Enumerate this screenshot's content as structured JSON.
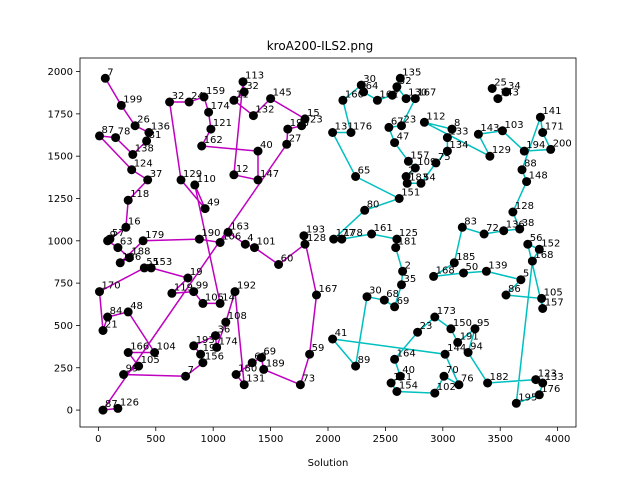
{
  "chart_data": {
    "type": "scatter",
    "title": "kroA200-ILS2.png",
    "xlabel": "Solution",
    "ylabel": "",
    "xlim": [
      -160,
      4160
    ],
    "ylim": [
      -100,
      2080
    ],
    "xticks": [
      0,
      500,
      1000,
      1500,
      2000,
      2500,
      3000,
      3500,
      4000
    ],
    "yticks": [
      0,
      250,
      500,
      750,
      1000,
      1250,
      1500,
      1750,
      2000
    ],
    "grid": false,
    "colors": {
      "point": "#000000",
      "route_a": "#bf00bf",
      "route_b": "#00bfbf"
    },
    "points": [
      {
        "id": "7",
        "x": 60,
        "y": 1960
      },
      {
        "id": "199",
        "x": 200,
        "y": 1800
      },
      {
        "id": "26",
        "x": 320,
        "y": 1680
      },
      {
        "id": "136",
        "x": 440,
        "y": 1640
      },
      {
        "id": "81",
        "x": 420,
        "y": 1590
      },
      {
        "id": "87",
        "x": 10,
        "y": 1620
      },
      {
        "id": "78",
        "x": 150,
        "y": 1610
      },
      {
        "id": "138",
        "x": 300,
        "y": 1510
      },
      {
        "id": "124",
        "x": 290,
        "y": 1420
      },
      {
        "id": "37",
        "x": 430,
        "y": 1360
      },
      {
        "id": "118",
        "x": 260,
        "y": 1240
      },
      {
        "id": "16",
        "x": 240,
        "y": 1080
      },
      {
        "id": "57",
        "x": 100,
        "y": 1010
      },
      {
        "id": "9",
        "x": 80,
        "y": 1000
      },
      {
        "id": "63",
        "x": 170,
        "y": 960
      },
      {
        "id": "188",
        "x": 270,
        "y": 900
      },
      {
        "id": "126",
        "x": 190,
        "y": 870
      },
      {
        "id": "179",
        "x": 390,
        "y": 1000
      },
      {
        "id": "170",
        "x": 10,
        "y": 700
      },
      {
        "id": "48",
        "x": 260,
        "y": 580
      },
      {
        "id": "84",
        "x": 80,
        "y": 550
      },
      {
        "id": "21",
        "x": 40,
        "y": 470
      },
      {
        "id": "166",
        "x": 260,
        "y": 340
      },
      {
        "id": "104",
        "x": 490,
        "y": 340
      },
      {
        "id": "105",
        "x": 350,
        "y": 260
      },
      {
        "id": "99",
        "x": 220,
        "y": 210
      },
      {
        "id": "87b",
        "x": 40,
        "y": 0
      },
      {
        "id": "126b",
        "x": 170,
        "y": 10
      },
      {
        "id": "55",
        "x": 400,
        "y": 840
      },
      {
        "id": "153",
        "x": 460,
        "y": 840
      },
      {
        "id": "19",
        "x": 780,
        "y": 780
      },
      {
        "id": "119",
        "x": 640,
        "y": 690
      },
      {
        "id": "99b",
        "x": 830,
        "y": 700
      },
      {
        "id": "105b",
        "x": 910,
        "y": 630
      },
      {
        "id": "14",
        "x": 1060,
        "y": 630
      },
      {
        "id": "192",
        "x": 1190,
        "y": 700
      },
      {
        "id": "108",
        "x": 1110,
        "y": 520
      },
      {
        "id": "36",
        "x": 1020,
        "y": 440
      },
      {
        "id": "193",
        "x": 830,
        "y": 380
      },
      {
        "id": "174",
        "x": 1030,
        "y": 370
      },
      {
        "id": "190",
        "x": 890,
        "y": 330
      },
      {
        "id": "156",
        "x": 910,
        "y": 280
      },
      {
        "id": "7b",
        "x": 760,
        "y": 200
      },
      {
        "id": "32",
        "x": 620,
        "y": 1820
      },
      {
        "id": "24",
        "x": 790,
        "y": 1820
      },
      {
        "id": "159",
        "x": 920,
        "y": 1850
      },
      {
        "id": "174b",
        "x": 960,
        "y": 1760
      },
      {
        "id": "121",
        "x": 980,
        "y": 1660
      },
      {
        "id": "162",
        "x": 900,
        "y": 1560
      },
      {
        "id": "113",
        "x": 1260,
        "y": 1940
      },
      {
        "id": "32b",
        "x": 1270,
        "y": 1880
      },
      {
        "id": "11",
        "x": 1180,
        "y": 1830
      },
      {
        "id": "132",
        "x": 1350,
        "y": 1740
      },
      {
        "id": "145",
        "x": 1500,
        "y": 1840
      },
      {
        "id": "15",
        "x": 1800,
        "y": 1720
      },
      {
        "id": "123",
        "x": 1770,
        "y": 1680
      },
      {
        "id": "198",
        "x": 1650,
        "y": 1660
      },
      {
        "id": "27",
        "x": 1640,
        "y": 1570
      },
      {
        "id": "40",
        "x": 1390,
        "y": 1530
      },
      {
        "id": "12",
        "x": 1180,
        "y": 1390
      },
      {
        "id": "147",
        "x": 1390,
        "y": 1360
      },
      {
        "id": "129",
        "x": 720,
        "y": 1360
      },
      {
        "id": "110",
        "x": 840,
        "y": 1330
      },
      {
        "id": "49",
        "x": 930,
        "y": 1190
      },
      {
        "id": "190b",
        "x": 880,
        "y": 1010
      },
      {
        "id": "106",
        "x": 1060,
        "y": 990
      },
      {
        "id": "163",
        "x": 1130,
        "y": 1050
      },
      {
        "id": "4",
        "x": 1280,
        "y": 980
      },
      {
        "id": "101",
        "x": 1360,
        "y": 960
      },
      {
        "id": "60",
        "x": 1570,
        "y": 860
      },
      {
        "id": "193b",
        "x": 1790,
        "y": 1030
      },
      {
        "id": "128",
        "x": 1800,
        "y": 980
      },
      {
        "id": "167",
        "x": 1900,
        "y": 680
      },
      {
        "id": "59",
        "x": 1840,
        "y": 330
      },
      {
        "id": "73",
        "x": 1760,
        "y": 150
      },
      {
        "id": "189",
        "x": 1440,
        "y": 240
      },
      {
        "id": "69",
        "x": 1420,
        "y": 310
      },
      {
        "id": "62",
        "x": 1340,
        "y": 280
      },
      {
        "id": "180",
        "x": 1200,
        "y": 210
      },
      {
        "id": "131",
        "x": 1270,
        "y": 150
      },
      {
        "id": "41",
        "x": 2040,
        "y": 420
      },
      {
        "id": "89",
        "x": 2240,
        "y": 260
      },
      {
        "id": "30",
        "x": 2340,
        "y": 670
      },
      {
        "id": "68",
        "x": 2490,
        "y": 650
      },
      {
        "id": "69b",
        "x": 2580,
        "y": 610
      },
      {
        "id": "35",
        "x": 2640,
        "y": 740
      },
      {
        "id": "2",
        "x": 2650,
        "y": 820
      },
      {
        "id": "181",
        "x": 2590,
        "y": 960
      },
      {
        "id": "125",
        "x": 2600,
        "y": 1010
      },
      {
        "id": "161",
        "x": 2380,
        "y": 1040
      },
      {
        "id": "177",
        "x": 2050,
        "y": 1010
      },
      {
        "id": "178",
        "x": 2120,
        "y": 1010
      },
      {
        "id": "80",
        "x": 2320,
        "y": 1180
      },
      {
        "id": "151",
        "x": 2620,
        "y": 1250
      },
      {
        "id": "65",
        "x": 2240,
        "y": 1380
      },
      {
        "id": "131b",
        "x": 2040,
        "y": 1640
      },
      {
        "id": "176",
        "x": 2200,
        "y": 1640
      },
      {
        "id": "160",
        "x": 2130,
        "y": 1830
      },
      {
        "id": "30b",
        "x": 2290,
        "y": 1920
      },
      {
        "id": "64",
        "x": 2310,
        "y": 1880
      },
      {
        "id": "162b",
        "x": 2430,
        "y": 1830
      },
      {
        "id": "5",
        "x": 2560,
        "y": 1860
      },
      {
        "id": "135",
        "x": 2630,
        "y": 1960
      },
      {
        "id": "52",
        "x": 2600,
        "y": 1910
      },
      {
        "id": "130",
        "x": 2680,
        "y": 1840
      },
      {
        "id": "167b",
        "x": 2760,
        "y": 1840
      },
      {
        "id": "67",
        "x": 2530,
        "y": 1670
      },
      {
        "id": "23",
        "x": 2640,
        "y": 1680
      },
      {
        "id": "112",
        "x": 2840,
        "y": 1700
      },
      {
        "id": "47",
        "x": 2580,
        "y": 1580
      },
      {
        "id": "157",
        "x": 2700,
        "y": 1470
      },
      {
        "id": "109",
        "x": 2760,
        "y": 1430
      },
      {
        "id": "75",
        "x": 2940,
        "y": 1460
      },
      {
        "id": "2b",
        "x": 2680,
        "y": 1380
      },
      {
        "id": "183",
        "x": 2690,
        "y": 1340
      },
      {
        "id": "54",
        "x": 2810,
        "y": 1340
      },
      {
        "id": "134",
        "x": 3040,
        "y": 1530
      },
      {
        "id": "133",
        "x": 3040,
        "y": 1610
      },
      {
        "id": "8",
        "x": 3080,
        "y": 1660
      },
      {
        "id": "129b",
        "x": 3410,
        "y": 1500
      },
      {
        "id": "143",
        "x": 3310,
        "y": 1630
      },
      {
        "id": "103",
        "x": 3520,
        "y": 1650
      },
      {
        "id": "194",
        "x": 3710,
        "y": 1530
      },
      {
        "id": "200",
        "x": 3940,
        "y": 1540
      },
      {
        "id": "171",
        "x": 3870,
        "y": 1640
      },
      {
        "id": "141",
        "x": 3850,
        "y": 1730
      },
      {
        "id": "148",
        "x": 3730,
        "y": 1350
      },
      {
        "id": "88",
        "x": 3690,
        "y": 1420
      },
      {
        "id": "25",
        "x": 3430,
        "y": 1900
      },
      {
        "id": "34",
        "x": 3550,
        "y": 1880
      },
      {
        "id": "143b",
        "x": 3480,
        "y": 1840
      },
      {
        "id": "128b",
        "x": 3610,
        "y": 1170
      },
      {
        "id": "38",
        "x": 3670,
        "y": 1070
      },
      {
        "id": "83",
        "x": 3170,
        "y": 1080
      },
      {
        "id": "72",
        "x": 3360,
        "y": 1040
      },
      {
        "id": "136b",
        "x": 3530,
        "y": 1060
      },
      {
        "id": "56",
        "x": 3740,
        "y": 980
      },
      {
        "id": "152",
        "x": 3840,
        "y": 950
      },
      {
        "id": "168",
        "x": 3780,
        "y": 880
      },
      {
        "id": "185",
        "x": 3100,
        "y": 870
      },
      {
        "id": "168b",
        "x": 2920,
        "y": 790
      },
      {
        "id": "50",
        "x": 3180,
        "y": 810
      },
      {
        "id": "139",
        "x": 3380,
        "y": 820
      },
      {
        "id": "5b",
        "x": 3680,
        "y": 770
      },
      {
        "id": "86",
        "x": 3550,
        "y": 680
      },
      {
        "id": "105c",
        "x": 3860,
        "y": 660
      },
      {
        "id": "157b",
        "x": 3870,
        "y": 600
      },
      {
        "id": "173",
        "x": 2930,
        "y": 550
      },
      {
        "id": "150",
        "x": 3070,
        "y": 480
      },
      {
        "id": "23b",
        "x": 2780,
        "y": 460
      },
      {
        "id": "95",
        "x": 3280,
        "y": 480
      },
      {
        "id": "191",
        "x": 3130,
        "y": 400
      },
      {
        "id": "144",
        "x": 3020,
        "y": 330
      },
      {
        "id": "94",
        "x": 3220,
        "y": 340
      },
      {
        "id": "164",
        "x": 2580,
        "y": 300
      },
      {
        "id": "40b",
        "x": 2630,
        "y": 200
      },
      {
        "id": "121b",
        "x": 2550,
        "y": 160
      },
      {
        "id": "154",
        "x": 2600,
        "y": 110
      },
      {
        "id": "70",
        "x": 3010,
        "y": 200
      },
      {
        "id": "76",
        "x": 3140,
        "y": 150
      },
      {
        "id": "102",
        "x": 2930,
        "y": 100
      },
      {
        "id": "182",
        "x": 3390,
        "y": 160
      },
      {
        "id": "195",
        "x": 3640,
        "y": 40
      },
      {
        "id": "123b",
        "x": 3810,
        "y": 180
      },
      {
        "id": "133b",
        "x": 3870,
        "y": 160
      },
      {
        "id": "176b",
        "x": 3840,
        "y": 90
      }
    ],
    "route_a_order": [
      "7",
      "199",
      "26",
      "136",
      "81",
      "138",
      "78",
      "87",
      "124",
      "37",
      "118",
      "16",
      "57",
      "9",
      "63",
      "188",
      "126",
      "179",
      "190b",
      "106",
      "163",
      "4",
      "101",
      "60",
      "128",
      "193b",
      "167",
      "59",
      "73",
      "189",
      "69",
      "62",
      "180",
      "131",
      "192",
      "108",
      "174",
      "36",
      "193",
      "190",
      "156",
      "7b",
      "99",
      "105",
      "166",
      "104",
      "48",
      "84",
      "21",
      "170",
      "55",
      "153",
      "19",
      "119",
      "99b",
      "105b",
      "14",
      "110",
      "49",
      "129",
      "32",
      "24",
      "159",
      "174b",
      "121",
      "162",
      "40",
      "147",
      "12",
      "113",
      "32b",
      "11",
      "132",
      "145",
      "15",
      "123",
      "198",
      "27",
      "87b",
      "126b"
    ],
    "route_b_order": [
      "41",
      "89",
      "30",
      "68",
      "69b",
      "35",
      "2",
      "181",
      "125",
      "161",
      "178",
      "177",
      "80",
      "151",
      "65",
      "131b",
      "176",
      "160",
      "30b",
      "64",
      "162b",
      "5",
      "135",
      "52",
      "130",
      "167b",
      "23",
      "67",
      "47",
      "157",
      "109",
      "2b",
      "183",
      "54",
      "75",
      "134",
      "133",
      "8",
      "112",
      "129b",
      "143",
      "103",
      "194",
      "200",
      "171",
      "141",
      "88",
      "148",
      "128b",
      "38",
      "136b",
      "72",
      "83",
      "185",
      "168b",
      "50",
      "139",
      "5b",
      "86",
      "105c",
      "157b",
      "56",
      "152",
      "168",
      "195",
      "176b",
      "133b",
      "123b",
      "182",
      "94",
      "95",
      "191",
      "150",
      "173",
      "23b",
      "164",
      "40b",
      "121b",
      "154",
      "102",
      "70",
      "76",
      "144",
      "41"
    ]
  }
}
